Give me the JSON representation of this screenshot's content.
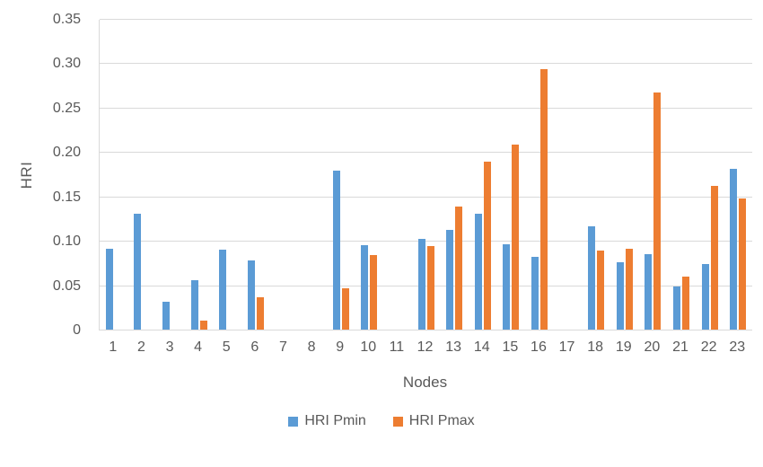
{
  "chart_data": {
    "type": "bar",
    "title": "",
    "xlabel": "Nodes",
    "ylabel": "HRI",
    "ylim": [
      0,
      0.35
    ],
    "ytick_step": 0.05,
    "ytick_labels": [
      "0",
      "0.05",
      "0.10",
      "0.15",
      "0.20",
      "0.25",
      "0.30",
      "0.35"
    ],
    "grid": true,
    "legend_position": "bottom",
    "categories": [
      "1",
      "2",
      "3",
      "4",
      "5",
      "6",
      "7",
      "8",
      "9",
      "10",
      "11",
      "12",
      "13",
      "14",
      "15",
      "16",
      "17",
      "18",
      "19",
      "20",
      "21",
      "22",
      "23"
    ],
    "series": [
      {
        "name": "HRI Pmin",
        "color": "#5B9BD5",
        "values": [
          0.092,
          0.132,
          0.032,
          0.057,
          0.091,
          0.079,
          0,
          0,
          0.18,
          0.096,
          0,
          0.103,
          0.113,
          0.132,
          0.097,
          0.083,
          0,
          0.117,
          0.077,
          0.086,
          0.05,
          0.075,
          0.182
        ]
      },
      {
        "name": "HRI Pmax",
        "color": "#ED7D31",
        "values": [
          0,
          0,
          0,
          0.011,
          0,
          0.037,
          0,
          0,
          0.048,
          0.085,
          0,
          0.095,
          0.14,
          0.19,
          0.209,
          0.294,
          0,
          0.09,
          0.092,
          0.268,
          0.061,
          0.163,
          0.149
        ]
      }
    ],
    "colors": {
      "gridline": "#D9D9D9",
      "axis_text": "#595959",
      "background": "#FFFFFF"
    }
  }
}
